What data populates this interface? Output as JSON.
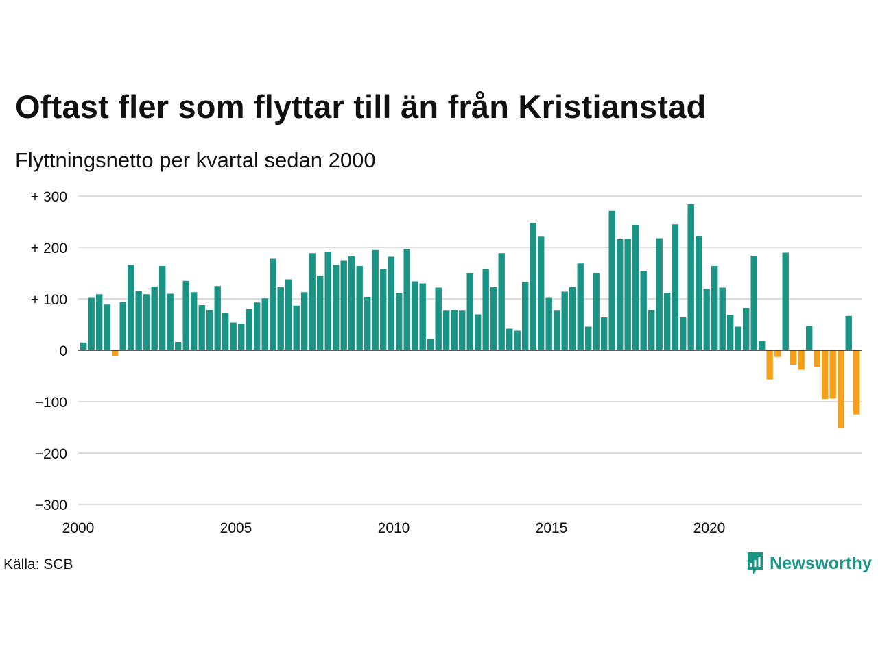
{
  "chart_data": {
    "type": "bar",
    "title": "Oftast fler som flyttar till än från Kristianstad",
    "subtitle": "Flyttningsnetto per kvartal sedan 2000",
    "xlabel": "",
    "ylabel": "",
    "ylim": [
      -300,
      300
    ],
    "y_ticks": [
      {
        "value": 300,
        "label": "+ 300"
      },
      {
        "value": 200,
        "label": "+ 200"
      },
      {
        "value": 100,
        "label": "+ 100"
      },
      {
        "value": 0,
        "label": "0"
      },
      {
        "value": -100,
        "label": "−100"
      },
      {
        "value": -200,
        "label": "−200"
      },
      {
        "value": -300,
        "label": "−300"
      }
    ],
    "x_ticks": [
      {
        "year": 2000,
        "label": "2000"
      },
      {
        "year": 2005,
        "label": "2005"
      },
      {
        "year": 2010,
        "label": "2010"
      },
      {
        "year": 2015,
        "label": "2015"
      },
      {
        "year": 2020,
        "label": "2020"
      }
    ],
    "first_year": 2000,
    "quarters_per_year": 4,
    "grid": true,
    "colors": {
      "positive": "#1a9485",
      "negative": "#f5a01a",
      "grid": "#dddddd",
      "zero_line": "#222222"
    },
    "values": [
      15,
      102,
      109,
      89,
      -12,
      94,
      166,
      115,
      109,
      124,
      164,
      110,
      16,
      135,
      113,
      88,
      78,
      125,
      73,
      54,
      52,
      80,
      93,
      101,
      178,
      123,
      138,
      87,
      113,
      189,
      145,
      192,
      166,
      174,
      183,
      164,
      103,
      195,
      158,
      182,
      112,
      197,
      134,
      130,
      22,
      122,
      77,
      78,
      77,
      150,
      70,
      158,
      123,
      189,
      42,
      38,
      133,
      248,
      221,
      102,
      77,
      114,
      123,
      169,
      46,
      150,
      64,
      271,
      216,
      217,
      244,
      154,
      78,
      218,
      112,
      245,
      64,
      284,
      222,
      120,
      164,
      122,
      69,
      46,
      82,
      184,
      18,
      -57,
      -13,
      190,
      -28,
      -38,
      47,
      -33,
      -95,
      -94,
      -151,
      67,
      -125
    ]
  },
  "footer": {
    "source": "Källa: SCB",
    "brand": "Newsworthy",
    "brand_icon": "newsworthy-logo-icon"
  }
}
